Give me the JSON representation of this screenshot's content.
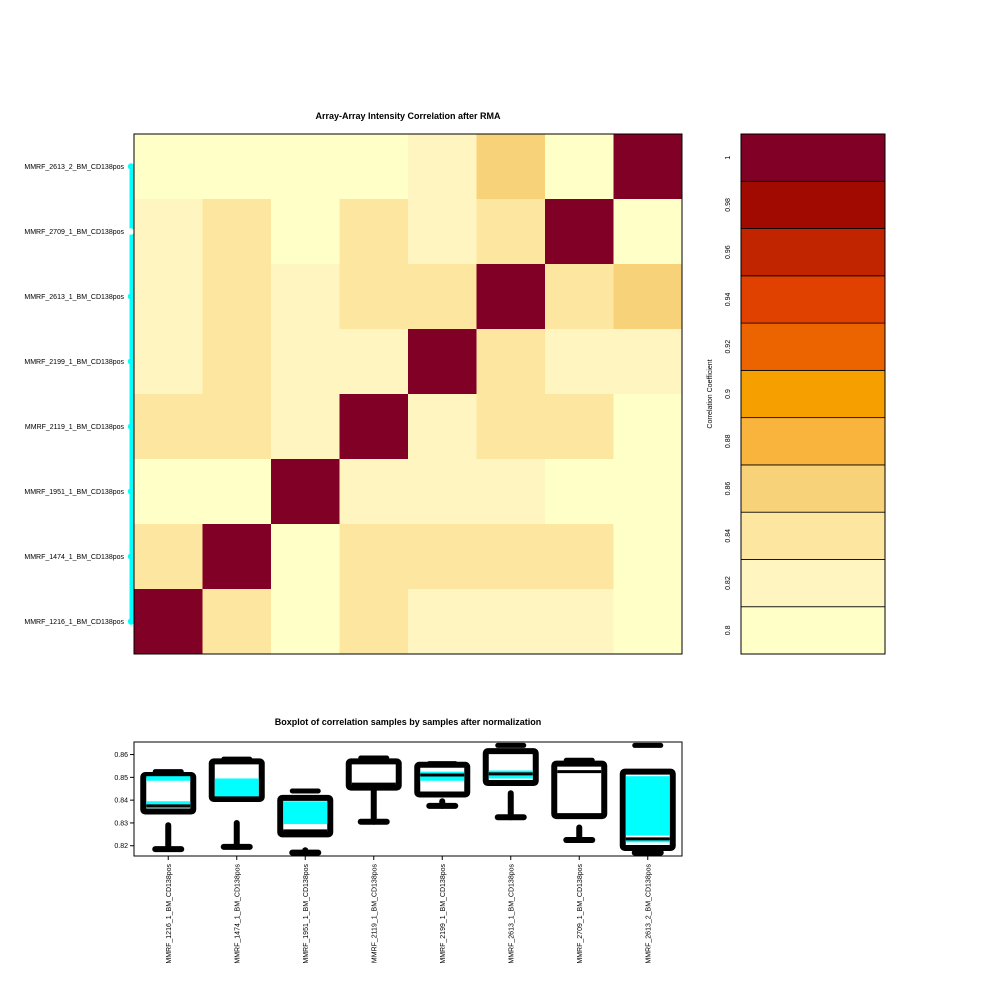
{
  "chart_data": [
    {
      "type": "heatmap",
      "title": "Array-Array Intensity Correlation after RMA",
      "row_labels_bottom_to_top": [
        "MMRF_1216_1_BM_CD138pos",
        "MMRF_1474_1_BM_CD138pos",
        "MMRF_1951_1_BM_CD138pos",
        "MMRF_2119_1_BM_CD138pos",
        "MMRF_2199_1_BM_CD138pos",
        "MMRF_2613_1_BM_CD138pos",
        "MMRF_2709_1_BM_CD138pos",
        "MMRF_2613_2_BM_CD138pos"
      ],
      "column_order": [
        "MMRF_1216_1_BM_CD138pos",
        "MMRF_1474_1_BM_CD138pos",
        "MMRF_1951_1_BM_CD138pos",
        "MMRF_2119_1_BM_CD138pos",
        "MMRF_2199_1_BM_CD138pos",
        "MMRF_2613_1_BM_CD138pos",
        "MMRF_2709_1_BM_CD138pos",
        "MMRF_2613_2_BM_CD138pos"
      ],
      "matrix_rows_top_to_bottom": [
        [
          0.8,
          0.8,
          0.8,
          0.8,
          0.82,
          0.86,
          0.8,
          1.0
        ],
        [
          0.82,
          0.84,
          0.8,
          0.84,
          0.82,
          0.84,
          1.0,
          0.8
        ],
        [
          0.82,
          0.84,
          0.82,
          0.84,
          0.84,
          1.0,
          0.84,
          0.86
        ],
        [
          0.82,
          0.84,
          0.82,
          0.82,
          1.0,
          0.84,
          0.82,
          0.82
        ],
        [
          0.84,
          0.84,
          0.82,
          1.0,
          0.82,
          0.84,
          0.84,
          0.8
        ],
        [
          0.8,
          0.8,
          1.0,
          0.82,
          0.82,
          0.82,
          0.8,
          0.8
        ],
        [
          0.84,
          1.0,
          0.8,
          0.84,
          0.84,
          0.84,
          0.84,
          0.8
        ],
        [
          1.0,
          0.84,
          0.8,
          0.84,
          0.82,
          0.82,
          0.82,
          0.8
        ]
      ],
      "row_marker_color": "#00ffff",
      "row_marker_white_label": "MMRF_2709_1_BM_CD138pos"
    },
    {
      "type": "colorbar",
      "label": "Correlation Coefficient",
      "ticks": [
        0.8,
        0.82,
        0.84,
        0.86,
        0.88,
        0.9,
        0.92,
        0.94,
        0.96,
        0.98,
        1
      ],
      "tick_labels": [
        "0.8",
        "0.82",
        "0.84",
        "0.86",
        "0.88",
        "0.9",
        "0.92",
        "0.94",
        "0.96",
        "0.98",
        "1"
      ],
      "colors_bottom_to_top": [
        "#ffffc8",
        "#fff5c0",
        "#fde6a0",
        "#f8d278",
        "#f8b43c",
        "#f5a000",
        "#eb6400",
        "#e14100",
        "#c02500",
        "#a00a00",
        "#800026"
      ]
    },
    {
      "type": "boxplot",
      "title": "Boxplot of correlation samples by samples after normalization",
      "categories": [
        "MMRF_1216_1_BM_CD138pos",
        "MMRF_1474_1_BM_CD138pos",
        "MMRF_1951_1_BM_CD138pos",
        "MMRF_2119_1_BM_CD138pos",
        "MMRF_2199_1_BM_CD138pos",
        "MMRF_2613_1_BM_CD138pos",
        "MMRF_2709_1_BM_CD138pos",
        "MMRF_2613_2_BM_CD138pos"
      ],
      "yticks": [
        0.82,
        0.83,
        0.84,
        0.85,
        0.86
      ],
      "ytick_labels": [
        "0.82",
        "0.83",
        "0.84",
        "0.85",
        "0.86"
      ],
      "ylim": [
        0.8155,
        0.8655
      ],
      "boxes": [
        {
          "min": 0.8185,
          "q1": 0.835,
          "median": 0.8375,
          "q3": 0.851,
          "max": 0.8525,
          "whisker_low_top": 0.829,
          "fill_bands": [
            [
              0.8365,
              0.8395
            ],
            [
              0.8485,
              0.8505
            ]
          ]
        },
        {
          "min": 0.8195,
          "q1": 0.8405,
          "median": 0.841,
          "q3": 0.857,
          "max": 0.858,
          "whisker_low_top": 0.83,
          "fill_bands": [
            [
              0.8415,
              0.8495
            ]
          ]
        },
        {
          "min": 0.817,
          "q1": 0.825,
          "median": 0.8265,
          "q3": 0.841,
          "max": 0.844,
          "whisker_low_top": 0.818,
          "fill_bands": [
            [
              0.8295,
              0.8395
            ]
          ]
        },
        {
          "min": 0.8305,
          "q1": 0.8455,
          "median": 0.847,
          "q3": 0.857,
          "max": 0.8585,
          "whisker_low_top": 0.8445,
          "fill_bands": []
        },
        {
          "min": 0.8375,
          "q1": 0.8425,
          "median": 0.851,
          "q3": 0.8555,
          "max": 0.856,
          "whisker_low_top": 0.8395,
          "fill_bands": [
            [
              0.8485,
              0.8525
            ]
          ]
        },
        {
          "min": 0.8325,
          "q1": 0.8475,
          "median": 0.8515,
          "q3": 0.8615,
          "max": 0.864,
          "whisker_low_top": 0.843,
          "fill_bands": [
            [
              0.8495,
              0.853
            ]
          ]
        },
        {
          "min": 0.8225,
          "q1": 0.833,
          "median": 0.8525,
          "q3": 0.856,
          "max": 0.8575,
          "whisker_low_top": 0.828,
          "fill_bands": []
        },
        {
          "min": 0.817,
          "q1": 0.819,
          "median": 0.823,
          "q3": 0.8525,
          "max": 0.864,
          "whisker_low_top": 0.8285,
          "fill_bands": [
            [
              0.8215,
              0.8225
            ],
            [
              0.8245,
              0.8505
            ]
          ]
        }
      ],
      "box_fill_color": "#00ffff"
    }
  ]
}
